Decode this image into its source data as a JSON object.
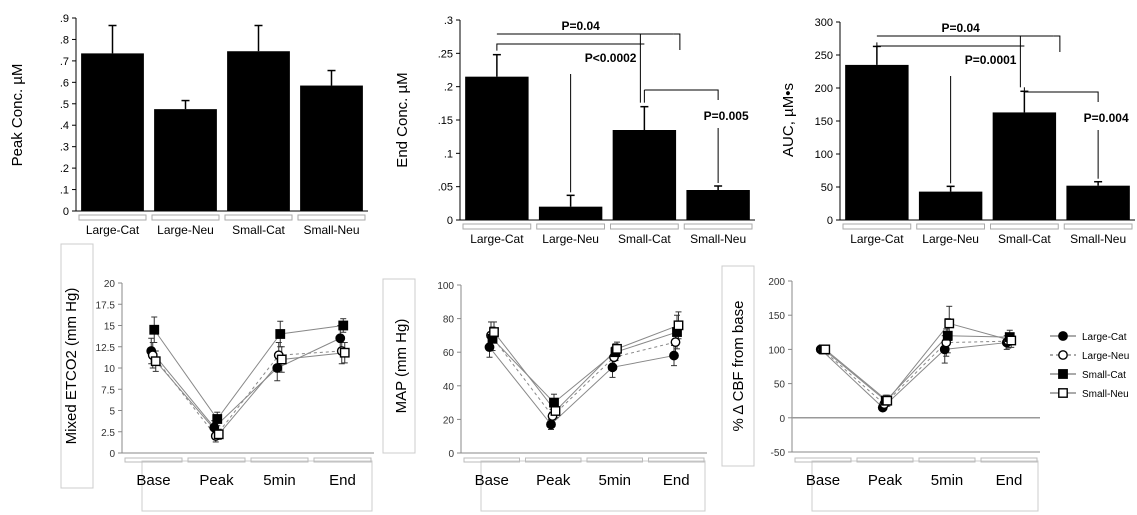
{
  "chart_data": [
    {
      "type": "bar",
      "ylabel": "Peak Conc. µM",
      "categories": [
        "Large-Cat",
        "Large-Neu",
        "Small-Cat",
        "Small-Neu"
      ],
      "values": [
        0.735,
        0.475,
        0.745,
        0.585
      ],
      "errors": [
        0.13,
        0.04,
        0.12,
        0.07
      ],
      "ylim": [
        0,
        0.9
      ],
      "yticks": [
        0,
        0.1,
        0.2,
        0.3,
        0.4,
        0.5,
        0.6,
        0.7,
        0.8,
        0.9
      ],
      "yticklabels": [
        "0",
        ".1",
        ".2",
        ".3",
        ".4",
        ".5",
        ".6",
        ".7",
        ".8",
        ".9"
      ],
      "annotations": []
    },
    {
      "type": "bar",
      "ylabel": "End Conc. µM",
      "categories": [
        "Large-Cat",
        "Large-Neu",
        "Small-Cat",
        "Small-Neu"
      ],
      "values": [
        0.215,
        0.02,
        0.135,
        0.045
      ],
      "errors": [
        0.033,
        0.017,
        0.035,
        0.006
      ],
      "ylim": [
        0,
        0.3
      ],
      "yticks": [
        0,
        0.05,
        0.1,
        0.15,
        0.2,
        0.25,
        0.3
      ],
      "yticklabels": [
        "0",
        ".05",
        ".1",
        ".15",
        ".2",
        ".25",
        ".3"
      ],
      "annotations": [
        {
          "label": "P=0.04",
          "from": "Large-Cat",
          "to": "Small-Cat"
        },
        {
          "label": "P<0.0002",
          "from": "Large-Cat",
          "to": "Large-Neu"
        },
        {
          "label": "P=0.005",
          "from": "Small-Cat",
          "to": "Small-Neu"
        }
      ]
    },
    {
      "type": "bar",
      "ylabel": "AUC, µM•s",
      "categories": [
        "Large-Cat",
        "Large-Neu",
        "Small-Cat",
        "Small-Neu"
      ],
      "values": [
        235,
        43,
        163,
        52
      ],
      "errors": [
        28,
        8,
        32,
        6
      ],
      "ylim": [
        0,
        300
      ],
      "yticks": [
        0,
        50,
        100,
        150,
        200,
        250,
        300
      ],
      "yticklabels": [
        "0",
        "50",
        "100",
        "150",
        "200",
        "250",
        "300"
      ],
      "annotations": [
        {
          "label": "P=0.04",
          "from": "Large-Cat",
          "to": "Small-Cat"
        },
        {
          "label": "P=0.0001",
          "from": "Large-Cat",
          "to": "Large-Neu"
        },
        {
          "label": "P=0.004",
          "from": "Small-Cat",
          "to": "Small-Neu"
        }
      ]
    },
    {
      "type": "line",
      "ylabel": "Mixed ETCO2 (mm Hg)",
      "categories": [
        "Base",
        "Peak",
        "5min",
        "End"
      ],
      "ylim": [
        0,
        20
      ],
      "yticks": [
        0,
        2.5,
        5,
        7.5,
        10,
        12.5,
        15,
        17.5,
        20
      ],
      "yticklabels": [
        "0",
        "2.5",
        "5",
        "7.5",
        "10",
        "12.5",
        "15",
        "17.5",
        "20"
      ],
      "series": [
        {
          "name": "Large-Cat",
          "values": [
            12.0,
            3.0,
            10.0,
            13.5
          ],
          "errors": [
            1.5,
            0.8,
            1.5,
            1.5
          ]
        },
        {
          "name": "Large-Neu",
          "values": [
            11.5,
            2.0,
            11.5,
            12.0
          ],
          "errors": [
            1.5,
            0.7,
            1.5,
            1.5
          ]
        },
        {
          "name": "Small-Cat",
          "values": [
            14.5,
            4.0,
            14.0,
            15.0
          ],
          "errors": [
            1.5,
            0.8,
            1.5,
            0.8
          ]
        },
        {
          "name": "Small-Neu",
          "values": [
            10.8,
            2.2,
            11.0,
            11.8
          ],
          "errors": [
            1.2,
            0.6,
            1.5,
            1.2
          ]
        }
      ]
    },
    {
      "type": "line",
      "ylabel": "MAP (mm Hg)",
      "categories": [
        "Base",
        "Peak",
        "5min",
        "End"
      ],
      "ylim": [
        0,
        100
      ],
      "yticks": [
        0,
        20,
        40,
        60,
        80,
        100
      ],
      "yticklabels": [
        "0",
        "20",
        "40",
        "60",
        "80",
        "100"
      ],
      "series": [
        {
          "name": "Large-Cat",
          "values": [
            63,
            17,
            51,
            58
          ],
          "errors": [
            6,
            3,
            6,
            6
          ]
        },
        {
          "name": "Large-Neu",
          "values": [
            70,
            22,
            57,
            66
          ],
          "errors": [
            8,
            4,
            6,
            8
          ]
        },
        {
          "name": "Small-Cat",
          "values": [
            68,
            30,
            60,
            72
          ],
          "errors": [
            7,
            5,
            5,
            10
          ]
        },
        {
          "name": "Small-Neu",
          "values": [
            72,
            25,
            62,
            76
          ],
          "errors": [
            6,
            4,
            4,
            8
          ]
        }
      ]
    },
    {
      "type": "line",
      "ylabel": "% Δ CBF from base",
      "categories": [
        "Base",
        "Peak",
        "5min",
        "End"
      ],
      "ylim": [
        -50,
        200
      ],
      "yticks": [
        -50,
        0,
        50,
        100,
        150,
        200
      ],
      "yticklabels": [
        "-50",
        "0",
        "50",
        "100",
        "150",
        "200"
      ],
      "series": [
        {
          "name": "Large-Cat",
          "values": [
            100,
            15,
            100,
            110
          ],
          "errors": [
            0,
            5,
            20,
            10
          ]
        },
        {
          "name": "Large-Neu",
          "values": [
            100,
            20,
            110,
            112
          ],
          "errors": [
            0,
            5,
            20,
            10
          ]
        },
        {
          "name": "Small-Cat",
          "values": [
            100,
            25,
            120,
            118
          ],
          "errors": [
            0,
            8,
            25,
            10
          ]
        },
        {
          "name": "Small-Neu",
          "values": [
            100,
            25,
            138,
            113
          ],
          "errors": [
            0,
            8,
            25,
            10
          ]
        }
      ]
    }
  ],
  "legend": [
    {
      "label": "Large-Cat",
      "marker": "circle-filled"
    },
    {
      "label": "Large-Neu",
      "marker": "circle-open"
    },
    {
      "label": "Small-Cat",
      "marker": "square-filled"
    },
    {
      "label": "Small-Neu",
      "marker": "square-open"
    }
  ]
}
